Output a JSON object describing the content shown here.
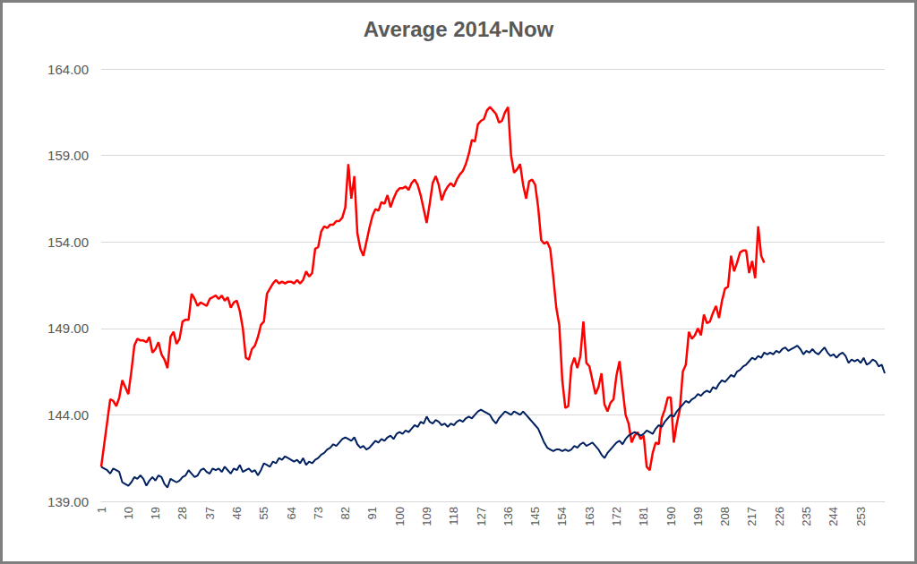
{
  "chart_data": {
    "type": "line",
    "title": "Average 2014-Now",
    "categories": [
      1,
      null,
      null,
      null,
      null,
      null,
      null,
      null,
      null,
      10,
      null,
      null,
      null,
      null,
      null,
      null,
      null,
      null,
      19,
      null,
      null,
      null,
      null,
      null,
      null,
      null,
      null,
      28,
      null,
      null,
      null,
      null,
      null,
      null,
      null,
      null,
      37,
      null,
      null,
      null,
      null,
      null,
      null,
      null,
      null,
      46,
      null,
      null,
      null,
      null,
      null,
      null,
      null,
      null,
      55,
      null,
      null,
      null,
      null,
      null,
      null,
      null,
      null,
      64,
      null,
      null,
      null,
      null,
      null,
      null,
      null,
      null,
      73,
      null,
      null,
      null,
      null,
      null,
      null,
      null,
      null,
      82,
      null,
      null,
      null,
      null,
      null,
      null,
      null,
      null,
      91,
      null,
      null,
      null,
      null,
      null,
      null,
      null,
      null,
      100,
      null,
      null,
      null,
      null,
      null,
      null,
      null,
      null,
      109,
      null,
      null,
      null,
      null,
      null,
      null,
      null,
      null,
      118,
      null,
      null,
      null,
      null,
      null,
      null,
      null,
      null,
      127,
      null,
      null,
      null,
      null,
      null,
      null,
      null,
      null,
      136,
      null,
      null,
      null,
      null,
      null,
      null,
      null,
      null,
      145,
      null,
      null,
      null,
      null,
      null,
      null,
      null,
      null,
      154,
      null,
      null,
      null,
      null,
      null,
      null,
      null,
      null,
      163,
      null,
      null,
      null,
      null,
      null,
      null,
      null,
      null,
      172,
      null,
      null,
      null,
      null,
      null,
      null,
      null,
      null,
      181,
      null,
      null,
      null,
      null,
      null,
      null,
      null,
      null,
      190,
      null,
      null,
      null,
      null,
      null,
      null,
      null,
      null,
      199,
      null,
      null,
      null,
      null,
      null,
      null,
      null,
      null,
      208,
      null,
      null,
      null,
      null,
      null,
      null,
      null,
      null,
      217,
      null,
      null,
      null,
      null,
      null,
      null,
      null,
      null,
      226,
      null,
      null,
      null,
      null,
      null,
      null,
      null,
      null,
      235,
      null,
      null,
      null,
      null,
      null,
      null,
      null,
      null,
      244,
      null,
      null,
      null,
      null,
      null,
      null,
      null,
      null,
      253,
      null,
      null,
      null,
      null,
      null,
      null,
      null,
      null
    ],
    "series": [
      {
        "color": "#ff0000",
        "values": [
          141.0,
          142.3,
          143.6,
          144.9,
          144.8,
          144.5,
          145.0,
          146.0,
          145.6,
          145.2,
          146.5,
          148.0,
          148.4,
          148.3,
          148.3,
          148.2,
          148.5,
          147.6,
          147.8,
          148.2,
          147.5,
          147.2,
          146.7,
          148.5,
          148.8,
          148.1,
          148.4,
          149.4,
          149.5,
          149.5,
          151.0,
          150.7,
          150.3,
          150.5,
          150.4,
          150.3,
          150.7,
          150.8,
          150.9,
          150.7,
          150.9,
          150.6,
          150.8,
          150.2,
          150.5,
          150.6,
          150.0,
          149.0,
          147.3,
          147.2,
          147.8,
          148.0,
          148.5,
          149.2,
          149.4,
          151.0,
          151.3,
          151.6,
          151.8,
          151.6,
          151.7,
          151.6,
          151.7,
          151.7,
          151.6,
          151.8,
          151.6,
          151.8,
          152.3,
          152.0,
          152.2,
          153.6,
          153.7,
          154.6,
          154.9,
          154.8,
          155.0,
          155.0,
          155.2,
          155.2,
          155.4,
          156.0,
          158.5,
          156.5,
          157.8,
          154.5,
          153.6,
          153.2,
          154.0,
          154.8,
          155.5,
          155.9,
          155.8,
          156.3,
          156.2,
          156.7,
          156.0,
          156.5,
          156.9,
          157.1,
          157.1,
          157.2,
          157.0,
          157.4,
          157.6,
          157.3,
          156.7,
          155.9,
          155.1,
          156.2,
          157.4,
          157.8,
          157.3,
          156.4,
          156.9,
          157.2,
          157.4,
          157.2,
          157.6,
          157.9,
          158.1,
          158.5,
          159.1,
          159.9,
          159.8,
          160.8,
          161.0,
          161.1,
          161.6,
          161.8,
          161.6,
          161.4,
          160.9,
          161.0,
          161.5,
          161.8,
          159.0,
          158.0,
          158.2,
          158.5,
          157.3,
          156.5,
          157.5,
          157.6,
          157.3,
          156.0,
          154.1,
          153.9,
          154.0,
          153.6,
          152.0,
          150.2,
          149.2,
          146.0,
          144.4,
          144.5,
          146.8,
          147.3,
          146.7,
          147.4,
          149.4,
          147.0,
          146.8,
          146.0,
          145.2,
          145.6,
          146.4,
          144.6,
          144.2,
          144.7,
          144.9,
          146.3,
          147.1,
          145.5,
          144.0,
          143.5,
          142.4,
          142.8,
          143.0,
          142.6,
          142.8,
          141.0,
          140.8,
          141.8,
          142.4,
          142.3,
          143.8,
          144.3,
          145.0,
          145.0,
          142.4,
          143.5,
          144.3,
          146.5,
          146.9,
          148.8,
          148.4,
          148.6,
          149.0,
          148.6,
          149.8,
          149.3,
          149.4,
          149.9,
          150.3,
          149.6,
          150.6,
          151.3,
          151.4,
          153.2,
          152.3,
          152.8,
          153.4,
          153.5,
          153.5,
          152.2,
          152.9,
          151.9,
          154.9,
          153.2,
          152.8,
          null,
          null,
          null,
          null,
          null,
          null,
          null,
          null,
          null,
          null,
          null,
          null,
          null,
          null,
          null,
          null,
          null,
          null,
          null,
          null,
          null,
          null,
          null,
          null,
          null,
          null,
          null,
          null,
          null,
          null,
          null,
          null,
          null,
          null,
          null,
          null,
          null,
          null,
          null,
          null
        ]
      },
      {
        "color": "#002060",
        "values": [
          141.0,
          140.9,
          140.8,
          140.6,
          140.9,
          140.8,
          140.7,
          140.1,
          140.0,
          139.9,
          140.1,
          140.4,
          140.3,
          140.5,
          140.3,
          139.9,
          140.2,
          140.4,
          140.2,
          140.5,
          140.4,
          140.0,
          139.8,
          140.3,
          140.2,
          140.1,
          140.2,
          140.4,
          140.5,
          140.8,
          140.6,
          140.4,
          140.5,
          140.8,
          140.9,
          140.7,
          140.6,
          140.9,
          140.8,
          140.9,
          140.7,
          141.0,
          140.8,
          140.6,
          140.9,
          140.8,
          141.1,
          140.7,
          140.8,
          140.9,
          140.7,
          140.8,
          140.5,
          140.8,
          141.2,
          141.1,
          141.0,
          141.3,
          141.2,
          141.5,
          141.4,
          141.6,
          141.5,
          141.4,
          141.3,
          141.4,
          141.2,
          141.5,
          141.1,
          141.3,
          141.2,
          141.4,
          141.5,
          141.7,
          141.8,
          142.0,
          142.1,
          142.3,
          142.2,
          142.4,
          142.6,
          142.7,
          142.6,
          142.5,
          142.7,
          142.3,
          142.1,
          142.2,
          142.0,
          142.1,
          142.3,
          142.5,
          142.4,
          142.6,
          142.5,
          142.7,
          142.8,
          142.6,
          142.9,
          143.0,
          142.9,
          143.1,
          143.0,
          143.2,
          143.4,
          143.3,
          143.6,
          143.5,
          143.9,
          143.6,
          143.5,
          143.7,
          143.6,
          143.4,
          143.5,
          143.3,
          143.5,
          143.4,
          143.6,
          143.7,
          143.6,
          143.8,
          143.9,
          143.8,
          144.0,
          144.2,
          144.3,
          144.2,
          144.1,
          144.0,
          143.7,
          143.5,
          143.8,
          144.0,
          144.2,
          144.1,
          144.0,
          144.2,
          144.1,
          144.0,
          144.2,
          144.0,
          143.8,
          143.6,
          143.4,
          143.2,
          142.8,
          142.4,
          142.1,
          142.0,
          141.9,
          142.0,
          142.0,
          141.9,
          142.0,
          141.9,
          142.0,
          142.2,
          142.1,
          142.3,
          142.4,
          142.2,
          142.3,
          142.4,
          142.2,
          142.0,
          141.7,
          141.5,
          141.8,
          142.0,
          142.2,
          142.4,
          142.5,
          142.3,
          142.6,
          142.8,
          142.9,
          143.0,
          142.9,
          142.8,
          142.9,
          143.1,
          143.0,
          142.9,
          143.2,
          143.4,
          143.3,
          143.6,
          143.8,
          144.0,
          143.9,
          144.2,
          144.4,
          144.6,
          144.8,
          144.7,
          144.9,
          145.0,
          145.2,
          145.1,
          145.3,
          145.4,
          145.3,
          145.6,
          145.5,
          145.8,
          146.0,
          145.9,
          146.1,
          146.3,
          146.2,
          146.5,
          146.6,
          146.8,
          146.9,
          147.1,
          147.3,
          147.2,
          147.4,
          147.3,
          147.6,
          147.5,
          147.6,
          147.5,
          147.7,
          147.6,
          147.8,
          147.9,
          147.7,
          147.8,
          147.9,
          148.0,
          147.8,
          147.5,
          147.7,
          147.6,
          147.8,
          147.6,
          147.5,
          147.7,
          147.9,
          147.6,
          147.4,
          147.5,
          147.3,
          147.5,
          147.6,
          147.4,
          147.0,
          147.2,
          147.1,
          147.2,
          147.0,
          147.3,
          146.9,
          147.0,
          147.2,
          147.1,
          146.8,
          146.9,
          146.4
        ]
      }
    ],
    "ylim": [
      139,
      164
    ],
    "yticks": [
      {
        "value": 139,
        "label": "139.00"
      },
      {
        "value": 144,
        "label": "144.00"
      },
      {
        "value": 149,
        "label": "149.00"
      },
      {
        "value": 154,
        "label": "154.00"
      },
      {
        "value": 159,
        "label": "159.00"
      },
      {
        "value": 164,
        "label": "164.00"
      }
    ],
    "grid": true
  }
}
